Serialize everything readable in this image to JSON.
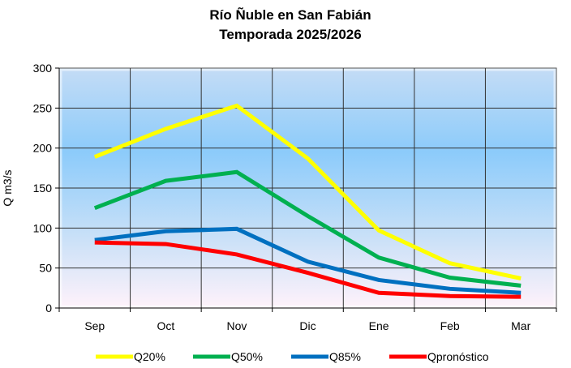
{
  "chart_data": {
    "type": "line",
    "title": [
      "Río Ñuble en San Fabián",
      "Temporada 2025/2026"
    ],
    "xlabel": "",
    "ylabel": "Q m3/s",
    "ylim": [
      0,
      300
    ],
    "yticks": [
      0,
      50,
      100,
      150,
      200,
      250,
      300
    ],
    "categories": [
      "Sep",
      "Oct",
      "Nov",
      "Dic",
      "Ene",
      "Feb",
      "Mar"
    ],
    "grid": true,
    "legend_position": "bottom",
    "series": [
      {
        "name": "Q20%",
        "color": "#ffff00",
        "values": [
          189,
          224,
          253,
          187,
          97,
          56,
          37
        ]
      },
      {
        "name": "Q50%",
        "color": "#00b050",
        "values": [
          125,
          159,
          170,
          115,
          63,
          38,
          28
        ]
      },
      {
        "name": "Q85%",
        "color": "#0070c0",
        "values": [
          85,
          96,
          99,
          58,
          35,
          24,
          19
        ]
      },
      {
        "name": "Qpronóstico",
        "color": "#ff0000",
        "values": [
          82,
          80,
          67,
          44,
          19,
          15,
          14
        ]
      }
    ]
  }
}
